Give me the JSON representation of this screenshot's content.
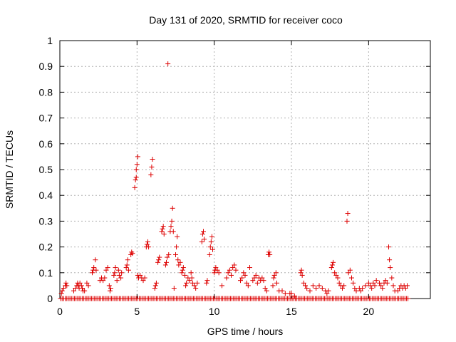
{
  "chart_data": {
    "type": "scatter",
    "title": "Day 131 of 2020, SRMTID for receiver coco",
    "xlabel": "GPS time / hours",
    "ylabel": "SRMTID / TECUs",
    "xlim": [
      0,
      24
    ],
    "ylim": [
      0,
      1
    ],
    "xticks": [
      0,
      5,
      10,
      15,
      20
    ],
    "yticks": [
      0,
      0.1,
      0.2,
      0.3,
      0.4,
      0.5,
      0.6,
      0.7,
      0.8,
      0.9,
      1
    ],
    "xtick_labels": [
      "0",
      "5",
      "10",
      "15",
      "20"
    ],
    "ytick_labels": [
      "0",
      "0.1",
      "0.2",
      "0.3",
      "0.4",
      "0.5",
      "0.6",
      "0.7",
      "0.8",
      "0.9",
      "1"
    ],
    "grid": true,
    "marker": "+",
    "color": "#dd0000",
    "baseline": {
      "y": 0,
      "x_start": 0.05,
      "x_end": 22.6,
      "step": 0.1
    },
    "points": [
      [
        0.1,
        0.02
      ],
      [
        0.15,
        0.03
      ],
      [
        0.25,
        0.04
      ],
      [
        0.35,
        0.05
      ],
      [
        0.4,
        0.06
      ],
      [
        0.45,
        0.05
      ],
      [
        0.9,
        0.03
      ],
      [
        1.0,
        0.04
      ],
      [
        1.1,
        0.05
      ],
      [
        1.15,
        0.06
      ],
      [
        1.2,
        0.05
      ],
      [
        1.25,
        0.04
      ],
      [
        1.3,
        0.06
      ],
      [
        1.4,
        0.05
      ],
      [
        1.45,
        0.04
      ],
      [
        1.5,
        0.03
      ],
      [
        1.6,
        0.03
      ],
      [
        1.75,
        0.06
      ],
      [
        1.85,
        0.05
      ],
      [
        2.1,
        0.1
      ],
      [
        2.15,
        0.11
      ],
      [
        2.2,
        0.12
      ],
      [
        2.3,
        0.15
      ],
      [
        2.35,
        0.11
      ],
      [
        2.6,
        0.07
      ],
      [
        2.7,
        0.08
      ],
      [
        2.8,
        0.07
      ],
      [
        2.9,
        0.08
      ],
      [
        3.0,
        0.11
      ],
      [
        3.1,
        0.12
      ],
      [
        3.2,
        0.05
      ],
      [
        3.25,
        0.03
      ],
      [
        3.3,
        0.04
      ],
      [
        3.5,
        0.09
      ],
      [
        3.55,
        0.1
      ],
      [
        3.6,
        0.12
      ],
      [
        3.7,
        0.07
      ],
      [
        3.8,
        0.11
      ],
      [
        3.85,
        0.09
      ],
      [
        3.95,
        0.08
      ],
      [
        4.0,
        0.1
      ],
      [
        4.3,
        0.12
      ],
      [
        4.35,
        0.13
      ],
      [
        4.4,
        0.15
      ],
      [
        4.45,
        0.11
      ],
      [
        4.6,
        0.17
      ],
      [
        4.65,
        0.18
      ],
      [
        4.7,
        0.175
      ],
      [
        4.85,
        0.43
      ],
      [
        4.9,
        0.46
      ],
      [
        4.95,
        0.5
      ],
      [
        5.0,
        0.52
      ],
      [
        5.05,
        0.55
      ],
      [
        4.95,
        0.47
      ],
      [
        5.05,
        0.09
      ],
      [
        5.1,
        0.08
      ],
      [
        5.2,
        0.09
      ],
      [
        5.3,
        0.08
      ],
      [
        5.4,
        0.07
      ],
      [
        5.5,
        0.08
      ],
      [
        5.6,
        0.2
      ],
      [
        5.65,
        0.21
      ],
      [
        5.7,
        0.22
      ],
      [
        5.75,
        0.2
      ],
      [
        5.9,
        0.48
      ],
      [
        5.95,
        0.51
      ],
      [
        6.0,
        0.54
      ],
      [
        6.15,
        0.04
      ],
      [
        6.2,
        0.05
      ],
      [
        6.25,
        0.06
      ],
      [
        6.35,
        0.14
      ],
      [
        6.4,
        0.15
      ],
      [
        6.45,
        0.16
      ],
      [
        6.6,
        0.26
      ],
      [
        6.65,
        0.27
      ],
      [
        6.7,
        0.28
      ],
      [
        6.75,
        0.25
      ],
      [
        6.85,
        0.13
      ],
      [
        6.9,
        0.14
      ],
      [
        6.95,
        0.16
      ],
      [
        7.0,
        0.91
      ],
      [
        7.05,
        0.17
      ],
      [
        7.15,
        0.26
      ],
      [
        7.2,
        0.28
      ],
      [
        7.25,
        0.3
      ],
      [
        7.3,
        0.35
      ],
      [
        7.35,
        0.26
      ],
      [
        7.4,
        0.04
      ],
      [
        7.5,
        0.17
      ],
      [
        7.55,
        0.2
      ],
      [
        7.6,
        0.24
      ],
      [
        7.65,
        0.15
      ],
      [
        7.7,
        0.13
      ],
      [
        7.8,
        0.14
      ],
      [
        7.9,
        0.1
      ],
      [
        7.95,
        0.11
      ],
      [
        8.0,
        0.12
      ],
      [
        8.1,
        0.09
      ],
      [
        8.15,
        0.05
      ],
      [
        8.2,
        0.06
      ],
      [
        8.3,
        0.08
      ],
      [
        8.4,
        0.07
      ],
      [
        8.5,
        0.1
      ],
      [
        8.55,
        0.08
      ],
      [
        8.6,
        0.06
      ],
      [
        8.7,
        0.05
      ],
      [
        8.8,
        0.04
      ],
      [
        8.9,
        0.06
      ],
      [
        9.2,
        0.22
      ],
      [
        9.25,
        0.25
      ],
      [
        9.3,
        0.26
      ],
      [
        9.35,
        0.23
      ],
      [
        9.5,
        0.06
      ],
      [
        9.55,
        0.07
      ],
      [
        9.7,
        0.17
      ],
      [
        9.75,
        0.2
      ],
      [
        9.8,
        0.22
      ],
      [
        9.85,
        0.24
      ],
      [
        9.9,
        0.19
      ],
      [
        10.0,
        0.1
      ],
      [
        10.05,
        0.11
      ],
      [
        10.1,
        0.12
      ],
      [
        10.2,
        0.11
      ],
      [
        10.3,
        0.1
      ],
      [
        10.5,
        0.05
      ],
      [
        10.8,
        0.08
      ],
      [
        10.9,
        0.1
      ],
      [
        11.0,
        0.11
      ],
      [
        11.1,
        0.09
      ],
      [
        11.2,
        0.12
      ],
      [
        11.3,
        0.13
      ],
      [
        11.4,
        0.11
      ],
      [
        11.7,
        0.07
      ],
      [
        11.8,
        0.08
      ],
      [
        11.9,
        0.1
      ],
      [
        12.0,
        0.09
      ],
      [
        12.1,
        0.06
      ],
      [
        12.2,
        0.05
      ],
      [
        12.3,
        0.12
      ],
      [
        12.5,
        0.07
      ],
      [
        12.6,
        0.08
      ],
      [
        12.7,
        0.09
      ],
      [
        12.8,
        0.06
      ],
      [
        12.9,
        0.08
      ],
      [
        13.0,
        0.07
      ],
      [
        13.1,
        0.08
      ],
      [
        13.2,
        0.07
      ],
      [
        13.3,
        0.04
      ],
      [
        13.4,
        0.03
      ],
      [
        13.5,
        0.17
      ],
      [
        13.55,
        0.18
      ],
      [
        13.6,
        0.17
      ],
      [
        13.8,
        0.05
      ],
      [
        13.85,
        0.08
      ],
      [
        13.9,
        0.09
      ],
      [
        14.0,
        0.1
      ],
      [
        14.05,
        0.06
      ],
      [
        14.2,
        0.03
      ],
      [
        14.4,
        0.03
      ],
      [
        14.6,
        0.02
      ],
      [
        14.9,
        0.02
      ],
      [
        15.0,
        0.02
      ],
      [
        15.2,
        0.01
      ],
      [
        15.6,
        0.1
      ],
      [
        15.65,
        0.11
      ],
      [
        15.7,
        0.09
      ],
      [
        15.8,
        0.06
      ],
      [
        15.9,
        0.05
      ],
      [
        16.0,
        0.04
      ],
      [
        16.2,
        0.03
      ],
      [
        16.4,
        0.05
      ],
      [
        16.6,
        0.04
      ],
      [
        16.8,
        0.05
      ],
      [
        17.0,
        0.04
      ],
      [
        17.2,
        0.03
      ],
      [
        17.3,
        0.02
      ],
      [
        17.4,
        0.03
      ],
      [
        17.6,
        0.12
      ],
      [
        17.65,
        0.13
      ],
      [
        17.7,
        0.14
      ],
      [
        17.8,
        0.1
      ],
      [
        17.9,
        0.09
      ],
      [
        18.0,
        0.08
      ],
      [
        18.1,
        0.06
      ],
      [
        18.2,
        0.05
      ],
      [
        18.3,
        0.04
      ],
      [
        18.4,
        0.05
      ],
      [
        18.6,
        0.3
      ],
      [
        18.65,
        0.33
      ],
      [
        18.7,
        0.1
      ],
      [
        18.8,
        0.11
      ],
      [
        18.9,
        0.08
      ],
      [
        19.0,
        0.06
      ],
      [
        19.1,
        0.04
      ],
      [
        19.2,
        0.03
      ],
      [
        19.4,
        0.04
      ],
      [
        19.5,
        0.03
      ],
      [
        19.6,
        0.04
      ],
      [
        19.8,
        0.05
      ],
      [
        20.0,
        0.06
      ],
      [
        20.1,
        0.05
      ],
      [
        20.2,
        0.04
      ],
      [
        20.3,
        0.06
      ],
      [
        20.4,
        0.05
      ],
      [
        20.5,
        0.07
      ],
      [
        20.7,
        0.06
      ],
      [
        20.8,
        0.05
      ],
      [
        20.9,
        0.04
      ],
      [
        21.0,
        0.06
      ],
      [
        21.1,
        0.07
      ],
      [
        21.2,
        0.06
      ],
      [
        21.3,
        0.2
      ],
      [
        21.35,
        0.15
      ],
      [
        21.4,
        0.12
      ],
      [
        21.5,
        0.08
      ],
      [
        21.6,
        0.05
      ],
      [
        21.7,
        0.03
      ],
      [
        21.9,
        0.03
      ],
      [
        22.0,
        0.04
      ],
      [
        22.1,
        0.05
      ],
      [
        22.2,
        0.04
      ],
      [
        22.3,
        0.05
      ],
      [
        22.4,
        0.04
      ],
      [
        22.5,
        0.05
      ]
    ]
  }
}
